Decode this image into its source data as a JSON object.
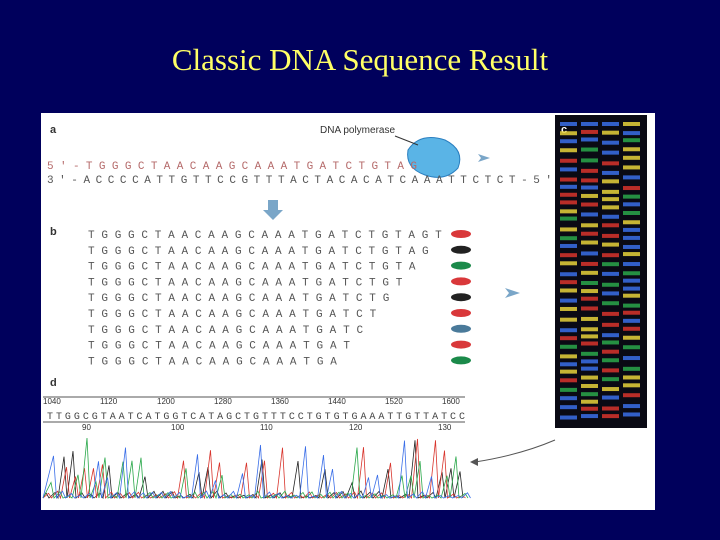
{
  "title": "Classic DNA Sequence Result",
  "panel_a": {
    "label": "a",
    "enzyme": "DNA polymerase",
    "strand_top": "5'-TGGGCTAACAAGCAAATGATCTGTAG",
    "strand_bottom": "3'-ACCCCATTGTTCCGTTTACTACACATCAAATTCTCT-5'"
  },
  "panel_b": {
    "label": "b",
    "fragments": [
      {
        "sequence": "TGGGCTAACAAGCAAATGATCTGTAGT",
        "color": "#d9383a"
      },
      {
        "sequence": "TGGGCTAACAAGCAAATGATCTGTAG",
        "color": "#222222"
      },
      {
        "sequence": "TGGGCTAACAAGCAAATGATCTGTA",
        "color": "#1b8a4a"
      },
      {
        "sequence": "TGGGCTAACAAGCAAATGATCTGT",
        "color": "#d9383a"
      },
      {
        "sequence": "TGGGCTAACAAGCAAATGATCTG",
        "color": "#222222"
      },
      {
        "sequence": "TGGGCTAACAAGCAAATGATCT",
        "color": "#d9383a"
      },
      {
        "sequence": "TGGGCTAACAAGCAAATGATC",
        "color": "#4a7a9a"
      },
      {
        "sequence": "TGGGCTAACAAGCAAATGAT",
        "color": "#d9383a"
      },
      {
        "sequence": "TGGGCTAACAAGCAAATGA",
        "color": "#1b8a4a"
      }
    ]
  },
  "panel_c": {
    "label": "c"
  },
  "panel_d": {
    "label": "d",
    "positions": [
      "1040",
      "1120",
      "1200",
      "1280",
      "1360",
      "1440",
      "1520",
      "1600"
    ],
    "read": "TTGGCGTAATCATGGTCATAGCTGTTTCCTGTGTGAAATTGTTATCC",
    "base_numbers": [
      "90",
      "100",
      "110",
      "120",
      "130"
    ]
  }
}
